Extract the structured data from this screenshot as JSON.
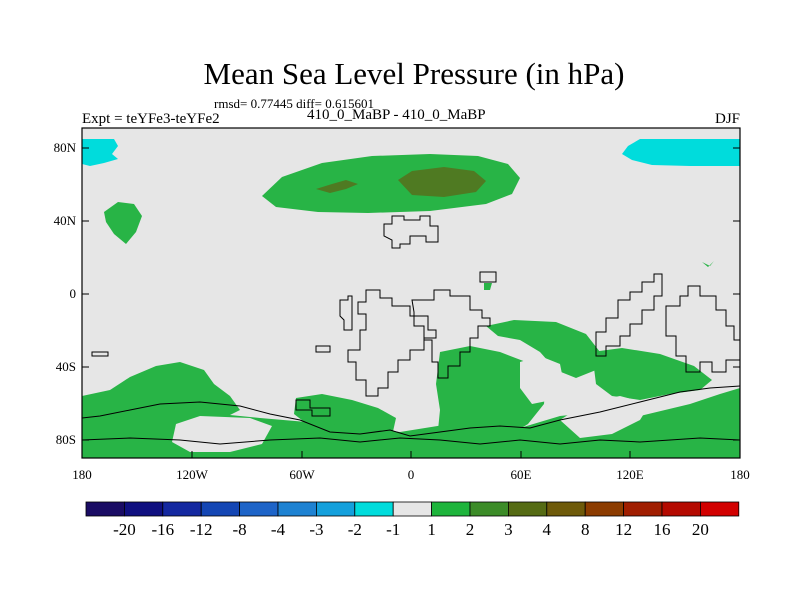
{
  "title": "Mean Sea Level Pressure (in hPa)",
  "stats": "rmsd= 0.77445 diff= 0.615601",
  "expt": "Expt = teYFe3-teYFe2",
  "center": "410_0_MaBP - 410_0_MaBP",
  "season": "DJF",
  "lat_ticks": [
    "80N",
    "40N",
    "0",
    "40S",
    "80S"
  ],
  "lon_ticks": [
    "180",
    "120W",
    "60W",
    "0",
    "60E",
    "120E",
    "180"
  ],
  "colorbar": {
    "labels": [
      "-20",
      "-16",
      "-12",
      "-8",
      "-4",
      "-3",
      "-2",
      "-1",
      "1",
      "2",
      "3",
      "4",
      "8",
      "12",
      "16",
      "20"
    ],
    "colors": [
      "#1a0c64",
      "#101080",
      "#1428a0",
      "#1446b4",
      "#1e64c8",
      "#1e82d2",
      "#14a0dc",
      "#00dcdc",
      "#e6e6e6",
      "#1eb43c",
      "#3c8c28",
      "#556b14",
      "#6e5a0a",
      "#8c3c00",
      "#a01e00",
      "#b40a00",
      "#d20000"
    ]
  },
  "colors": {
    "neutral": "#e6e6e6",
    "green_light": "#28b446",
    "green_dark": "#4f7a22",
    "cyan": "#00dcdc",
    "land_outline": "#000000"
  }
}
